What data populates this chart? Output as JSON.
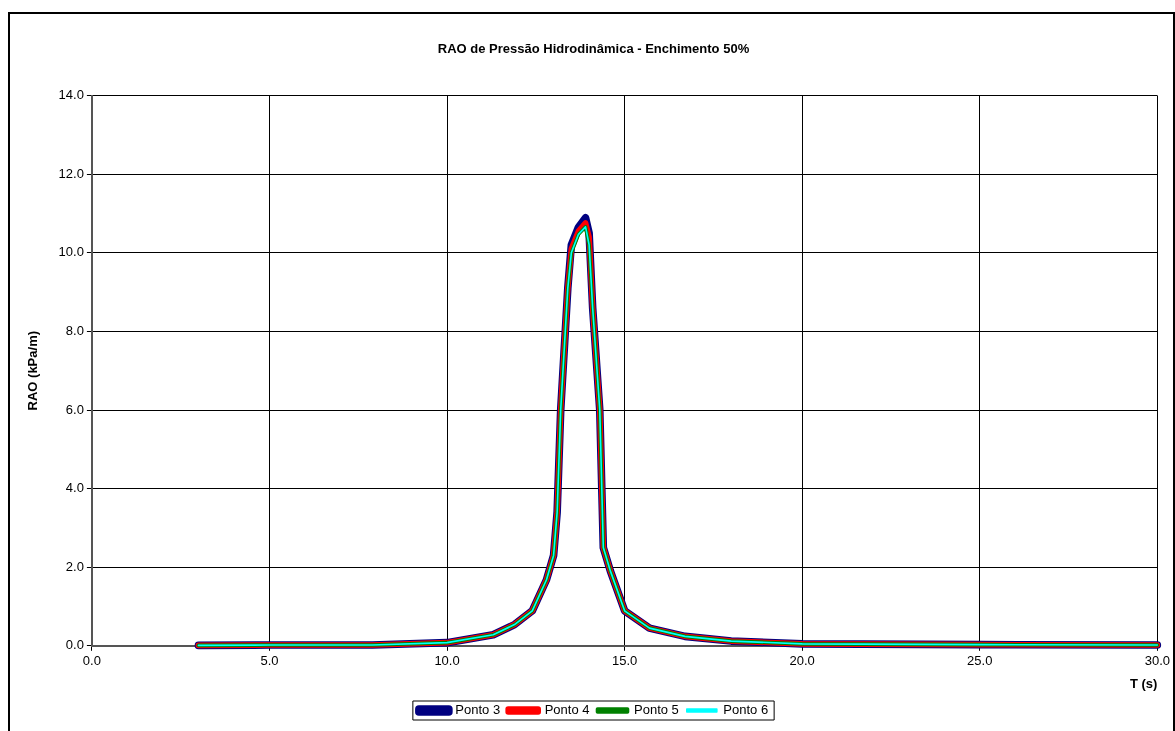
{
  "chart_data": {
    "type": "line",
    "title": "RAO de Pressão Hidrodinâmica - Enchimento 50%",
    "xlabel": "T (s)",
    "ylabel": "RAO (kPa/m)",
    "xlim": [
      0,
      30
    ],
    "xticks": [
      {
        "value": 0,
        "label": "0.0"
      },
      {
        "value": 5,
        "label": "5.0"
      },
      {
        "value": 10,
        "label": "10.0"
      },
      {
        "value": 15,
        "label": "15.0"
      },
      {
        "value": 20,
        "label": "20.0"
      },
      {
        "value": 25,
        "label": "25.0"
      },
      {
        "value": 30,
        "label": "30.0"
      }
    ],
    "ylim": [
      0,
      14
    ],
    "yticks": [
      {
        "value": 0,
        "label": "0.0"
      },
      {
        "value": 2,
        "label": "2.0"
      },
      {
        "value": 4,
        "label": "4.0"
      },
      {
        "value": 6,
        "label": "6.0"
      },
      {
        "value": 8,
        "label": "8.0"
      },
      {
        "value": 10,
        "label": "10.0"
      },
      {
        "value": 12,
        "label": "12.0"
      },
      {
        "value": 14,
        "label": "14.0"
      }
    ],
    "x": [
      3,
      5,
      7.9,
      10,
      11.3,
      11.9,
      12.4,
      12.8,
      13,
      13.1,
      13.2,
      13.4,
      13.5,
      13.7,
      13.9,
      14,
      14.1,
      14.3,
      14.4,
      14.6,
      15,
      15.7,
      16.7,
      18,
      20,
      25,
      30
    ],
    "series": [
      {
        "name": "Ponto 3",
        "color": "#000080",
        "values": [
          0.01,
          0.02,
          0.02,
          0.08,
          0.28,
          0.54,
          0.89,
          1.68,
          2.3,
          3.4,
          6.0,
          9.1,
          10.2,
          10.65,
          10.89,
          10.5,
          8.6,
          6.0,
          2.5,
          1.9,
          0.89,
          0.45,
          0.24,
          0.12,
          0.05,
          0.03,
          0.02
        ]
      },
      {
        "name": "Ponto 4",
        "color": "#ff0000",
        "values": [
          0.01,
          0.02,
          0.02,
          0.08,
          0.28,
          0.54,
          0.89,
          1.68,
          2.3,
          3.4,
          6.0,
          9.1,
          10.1,
          10.55,
          10.76,
          10.4,
          8.6,
          6.0,
          2.5,
          1.9,
          0.89,
          0.45,
          0.24,
          0.12,
          0.05,
          0.03,
          0.02
        ]
      },
      {
        "name": "Ponto 5",
        "color": "#008000",
        "values": [
          0.01,
          0.02,
          0.02,
          0.08,
          0.28,
          0.54,
          0.89,
          1.68,
          2.3,
          3.4,
          6.0,
          9.1,
          10.0,
          10.47,
          10.66,
          10.2,
          8.6,
          6.0,
          2.5,
          1.9,
          0.89,
          0.45,
          0.24,
          0.12,
          0.05,
          0.03,
          0.02
        ]
      },
      {
        "name": "Ponto 6",
        "color": "#00ffff",
        "values": [
          0.01,
          0.02,
          0.02,
          0.08,
          0.28,
          0.54,
          0.89,
          1.68,
          2.3,
          3.4,
          6.0,
          9.1,
          10.0,
          10.47,
          10.66,
          10.2,
          8.6,
          6.0,
          2.5,
          1.9,
          0.89,
          0.45,
          0.24,
          0.12,
          0.05,
          0.03,
          0.02
        ]
      }
    ],
    "grid": true,
    "legend": "bottom",
    "marker": "none",
    "line_style": "solid"
  }
}
